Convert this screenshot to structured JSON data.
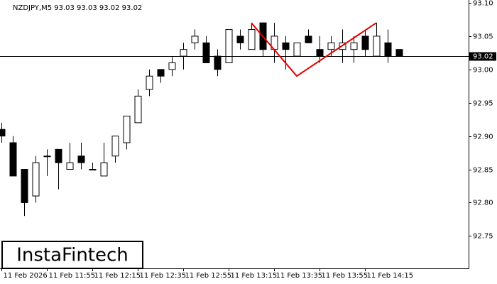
{
  "chart_data": {
    "type": "candlestick",
    "header": "NZDJPY,M5  93.03 93.03 93.02 93.02",
    "watermark": "InstaFintech",
    "categories": [
      "11 Feb 2026",
      null,
      null,
      null,
      "11 Feb 11:55",
      null,
      null,
      null,
      "11 Feb 12:15",
      null,
      null,
      null,
      "11 Feb 12:35",
      null,
      null,
      null,
      "11 Feb 12:55",
      null,
      null,
      null,
      "11 Feb 13:15",
      null,
      null,
      null,
      "11 Feb 13:35",
      null,
      null,
      null,
      "11 Feb 13:55",
      null,
      null,
      null,
      "11 Feb 14:15",
      null,
      null,
      null
    ],
    "open": [
      92.91,
      92.89,
      92.85,
      92.81,
      92.87,
      92.88,
      92.85,
      92.87,
      92.85,
      92.84,
      92.87,
      92.89,
      92.92,
      92.97,
      93.0,
      93.0,
      93.02,
      93.04,
      93.04,
      93.02,
      93.01,
      93.05,
      93.03,
      93.07,
      93.03,
      93.04,
      93.02,
      93.05,
      93.03,
      93.03,
      93.03,
      93.03,
      93.05,
      93.02,
      93.04,
      93.03
    ],
    "high": [
      92.92,
      92.9,
      92.85,
      92.87,
      92.88,
      92.88,
      92.89,
      92.89,
      92.86,
      92.89,
      92.9,
      92.93,
      92.97,
      93.0,
      93.0,
      93.02,
      93.04,
      93.06,
      93.05,
      93.03,
      93.06,
      93.06,
      93.07,
      93.07,
      93.07,
      93.05,
      93.04,
      93.06,
      93.05,
      93.05,
      93.06,
      93.05,
      93.06,
      93.07,
      93.06,
      93.03
    ],
    "low": [
      92.89,
      92.84,
      92.78,
      92.8,
      92.84,
      92.82,
      92.85,
      92.85,
      92.85,
      92.84,
      92.86,
      92.88,
      92.92,
      92.96,
      92.98,
      92.99,
      93.0,
      93.03,
      93.01,
      92.99,
      93.01,
      93.03,
      93.03,
      93.02,
      93.01,
      93.0,
      93.02,
      93.04,
      93.01,
      93.02,
      93.01,
      93.01,
      93.02,
      93.02,
      93.01,
      93.02
    ],
    "close": [
      92.9,
      92.84,
      92.8,
      92.86,
      92.87,
      92.86,
      92.86,
      92.86,
      92.85,
      92.86,
      92.9,
      92.93,
      92.96,
      92.99,
      92.99,
      93.01,
      93.03,
      93.05,
      93.01,
      93.0,
      93.06,
      93.04,
      93.06,
      93.03,
      93.05,
      93.03,
      93.04,
      93.04,
      93.02,
      93.04,
      93.04,
      93.04,
      93.03,
      93.05,
      93.02,
      93.02
    ],
    "bull_color": "#ffffff",
    "bear_color": "#000000",
    "current_price": 93.02,
    "pattern": {
      "color": "#e00000",
      "x": [
        22,
        26,
        33
      ],
      "values": [
        93.07,
        92.99,
        93.07
      ]
    },
    "ylim": [
      92.7013,
      93.1043
    ],
    "yticks": [
      {
        "value": 93.1,
        "label": "93.10"
      },
      93.05,
      {
        "value": 93.0,
        "label": "93.00"
      },
      92.95,
      {
        "value": 92.9,
        "label": "92.90"
      },
      92.85,
      {
        "value": 92.8,
        "label": "92.80"
      },
      92.75
    ]
  }
}
